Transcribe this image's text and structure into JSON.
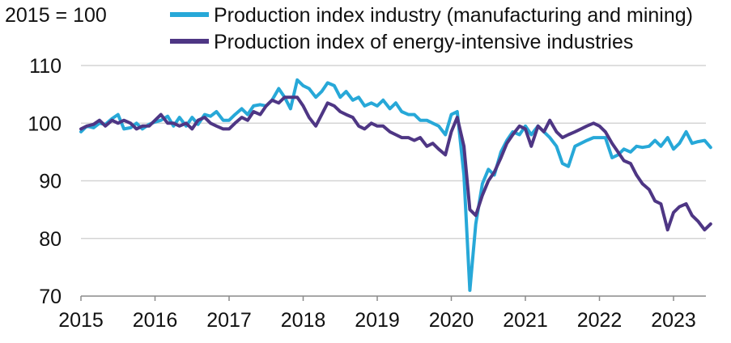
{
  "chart_data": {
    "type": "line",
    "title": "",
    "ylabel": "2015 = 100",
    "xlabel": "",
    "ylim": [
      70,
      110
    ],
    "yticks": [
      70,
      80,
      90,
      100,
      110
    ],
    "xlim": [
      2015,
      2023.5
    ],
    "xticks": [
      2015,
      2016,
      2017,
      2018,
      2019,
      2020,
      2021,
      2022,
      2023
    ],
    "grid": "horizontal",
    "legend_position": "top",
    "series": [
      {
        "name": "Production index industry (manufacturing and mining)",
        "color": "#27a8d8",
        "points": [
          [
            2015.0,
            98.5
          ],
          [
            2015.08,
            99.5
          ],
          [
            2015.17,
            99.2
          ],
          [
            2015.25,
            100.0
          ],
          [
            2015.33,
            99.8
          ],
          [
            2015.42,
            100.8
          ],
          [
            2015.5,
            101.5
          ],
          [
            2015.58,
            99.0
          ],
          [
            2015.67,
            99.2
          ],
          [
            2015.75,
            100.0
          ],
          [
            2015.83,
            99.0
          ],
          [
            2015.92,
            99.8
          ],
          [
            2016.0,
            100.2
          ],
          [
            2016.08,
            100.5
          ],
          [
            2016.17,
            101.2
          ],
          [
            2016.25,
            99.5
          ],
          [
            2016.33,
            101.0
          ],
          [
            2016.42,
            99.5
          ],
          [
            2016.5,
            101.0
          ],
          [
            2016.58,
            99.8
          ],
          [
            2016.67,
            101.5
          ],
          [
            2016.75,
            101.2
          ],
          [
            2016.83,
            102.0
          ],
          [
            2016.92,
            100.5
          ],
          [
            2017.0,
            100.5
          ],
          [
            2017.08,
            101.5
          ],
          [
            2017.17,
            102.5
          ],
          [
            2017.25,
            101.5
          ],
          [
            2017.33,
            103.0
          ],
          [
            2017.42,
            103.2
          ],
          [
            2017.5,
            103.0
          ],
          [
            2017.58,
            104.0
          ],
          [
            2017.67,
            106.0
          ],
          [
            2017.75,
            104.5
          ],
          [
            2017.83,
            102.5
          ],
          [
            2017.92,
            107.5
          ],
          [
            2018.0,
            106.5
          ],
          [
            2018.08,
            106.0
          ],
          [
            2018.17,
            104.5
          ],
          [
            2018.25,
            105.5
          ],
          [
            2018.33,
            107.0
          ],
          [
            2018.42,
            106.5
          ],
          [
            2018.5,
            104.5
          ],
          [
            2018.58,
            105.5
          ],
          [
            2018.67,
            104.0
          ],
          [
            2018.75,
            104.5
          ],
          [
            2018.83,
            103.0
          ],
          [
            2018.92,
            103.5
          ],
          [
            2019.0,
            103.0
          ],
          [
            2019.08,
            104.0
          ],
          [
            2019.17,
            102.5
          ],
          [
            2019.25,
            103.5
          ],
          [
            2019.33,
            102.0
          ],
          [
            2019.42,
            101.5
          ],
          [
            2019.5,
            101.5
          ],
          [
            2019.58,
            100.5
          ],
          [
            2019.67,
            100.5
          ],
          [
            2019.75,
            100.0
          ],
          [
            2019.83,
            99.5
          ],
          [
            2019.92,
            98.0
          ],
          [
            2020.0,
            101.5
          ],
          [
            2020.08,
            102.0
          ],
          [
            2020.17,
            91.0
          ],
          [
            2020.25,
            71.0
          ],
          [
            2020.33,
            82.5
          ],
          [
            2020.42,
            89.5
          ],
          [
            2020.5,
            92.0
          ],
          [
            2020.58,
            91.0
          ],
          [
            2020.67,
            95.0
          ],
          [
            2020.75,
            97.0
          ],
          [
            2020.83,
            98.5
          ],
          [
            2020.92,
            98.0
          ],
          [
            2021.0,
            99.5
          ],
          [
            2021.08,
            98.0
          ],
          [
            2021.17,
            99.5
          ],
          [
            2021.25,
            98.5
          ],
          [
            2021.33,
            97.5
          ],
          [
            2021.42,
            96.0
          ],
          [
            2021.5,
            93.0
          ],
          [
            2021.58,
            92.5
          ],
          [
            2021.67,
            96.0
          ],
          [
            2021.75,
            96.5
          ],
          [
            2021.83,
            97.0
          ],
          [
            2021.92,
            97.5
          ],
          [
            2022.0,
            97.5
          ],
          [
            2022.08,
            97.5
          ],
          [
            2022.17,
            94.0
          ],
          [
            2022.25,
            94.5
          ],
          [
            2022.33,
            95.5
          ],
          [
            2022.42,
            95.0
          ],
          [
            2022.5,
            96.0
          ],
          [
            2022.58,
            95.8
          ],
          [
            2022.67,
            96.0
          ],
          [
            2022.75,
            97.0
          ],
          [
            2022.83,
            96.0
          ],
          [
            2022.92,
            97.5
          ],
          [
            2023.0,
            95.5
          ],
          [
            2023.08,
            96.5
          ],
          [
            2023.17,
            98.5
          ],
          [
            2023.25,
            96.5
          ],
          [
            2023.33,
            96.8
          ],
          [
            2023.42,
            97.0
          ],
          [
            2023.5,
            95.8
          ]
        ]
      },
      {
        "name": "Production index of energy-intensive industries",
        "color": "#4e3684",
        "points": [
          [
            2015.0,
            99.0
          ],
          [
            2015.08,
            99.5
          ],
          [
            2015.17,
            99.8
          ],
          [
            2015.25,
            100.5
          ],
          [
            2015.33,
            99.5
          ],
          [
            2015.42,
            100.5
          ],
          [
            2015.5,
            100.0
          ],
          [
            2015.58,
            100.5
          ],
          [
            2015.67,
            100.0
          ],
          [
            2015.75,
            99.0
          ],
          [
            2015.83,
            99.5
          ],
          [
            2015.92,
            99.5
          ],
          [
            2016.0,
            100.5
          ],
          [
            2016.08,
            101.5
          ],
          [
            2016.17,
            100.0
          ],
          [
            2016.25,
            100.0
          ],
          [
            2016.33,
            99.5
          ],
          [
            2016.42,
            100.0
          ],
          [
            2016.5,
            99.0
          ],
          [
            2016.58,
            100.5
          ],
          [
            2016.67,
            101.0
          ],
          [
            2016.75,
            100.0
          ],
          [
            2016.83,
            99.5
          ],
          [
            2016.92,
            99.0
          ],
          [
            2017.0,
            99.0
          ],
          [
            2017.08,
            100.0
          ],
          [
            2017.17,
            101.0
          ],
          [
            2017.25,
            100.5
          ],
          [
            2017.33,
            102.0
          ],
          [
            2017.42,
            101.5
          ],
          [
            2017.5,
            103.0
          ],
          [
            2017.58,
            104.0
          ],
          [
            2017.67,
            103.5
          ],
          [
            2017.75,
            104.5
          ],
          [
            2017.83,
            104.5
          ],
          [
            2017.92,
            104.5
          ],
          [
            2018.0,
            103.0
          ],
          [
            2018.08,
            101.0
          ],
          [
            2018.17,
            99.5
          ],
          [
            2018.25,
            101.5
          ],
          [
            2018.33,
            103.5
          ],
          [
            2018.42,
            103.0
          ],
          [
            2018.5,
            102.0
          ],
          [
            2018.58,
            101.5
          ],
          [
            2018.67,
            101.0
          ],
          [
            2018.75,
            99.5
          ],
          [
            2018.83,
            99.0
          ],
          [
            2018.92,
            100.0
          ],
          [
            2019.0,
            99.5
          ],
          [
            2019.08,
            99.5
          ],
          [
            2019.17,
            98.5
          ],
          [
            2019.25,
            98.0
          ],
          [
            2019.33,
            97.5
          ],
          [
            2019.42,
            97.5
          ],
          [
            2019.5,
            97.0
          ],
          [
            2019.58,
            97.5
          ],
          [
            2019.67,
            96.0
          ],
          [
            2019.75,
            96.5
          ],
          [
            2019.83,
            95.5
          ],
          [
            2019.92,
            94.5
          ],
          [
            2020.0,
            98.5
          ],
          [
            2020.08,
            101.0
          ],
          [
            2020.17,
            96.0
          ],
          [
            2020.25,
            85.0
          ],
          [
            2020.33,
            84.0
          ],
          [
            2020.42,
            87.5
          ],
          [
            2020.5,
            90.0
          ],
          [
            2020.58,
            91.5
          ],
          [
            2020.67,
            94.0
          ],
          [
            2020.75,
            96.5
          ],
          [
            2020.83,
            98.0
          ],
          [
            2020.92,
            99.5
          ],
          [
            2021.0,
            99.0
          ],
          [
            2021.08,
            96.0
          ],
          [
            2021.17,
            99.5
          ],
          [
            2021.25,
            98.5
          ],
          [
            2021.33,
            100.5
          ],
          [
            2021.42,
            98.5
          ],
          [
            2021.5,
            97.5
          ],
          [
            2021.58,
            98.0
          ],
          [
            2021.67,
            98.5
          ],
          [
            2021.75,
            99.0
          ],
          [
            2021.83,
            99.5
          ],
          [
            2021.92,
            100.0
          ],
          [
            2022.0,
            99.5
          ],
          [
            2022.08,
            98.5
          ],
          [
            2022.17,
            96.5
          ],
          [
            2022.25,
            95.0
          ],
          [
            2022.33,
            93.5
          ],
          [
            2022.42,
            93.0
          ],
          [
            2022.5,
            91.0
          ],
          [
            2022.58,
            89.5
          ],
          [
            2022.67,
            88.5
          ],
          [
            2022.75,
            86.5
          ],
          [
            2022.83,
            86.0
          ],
          [
            2022.92,
            81.5
          ],
          [
            2023.0,
            84.5
          ],
          [
            2023.08,
            85.5
          ],
          [
            2023.17,
            86.0
          ],
          [
            2023.25,
            84.0
          ],
          [
            2023.33,
            83.0
          ],
          [
            2023.42,
            81.5
          ],
          [
            2023.5,
            82.5
          ]
        ]
      }
    ]
  }
}
